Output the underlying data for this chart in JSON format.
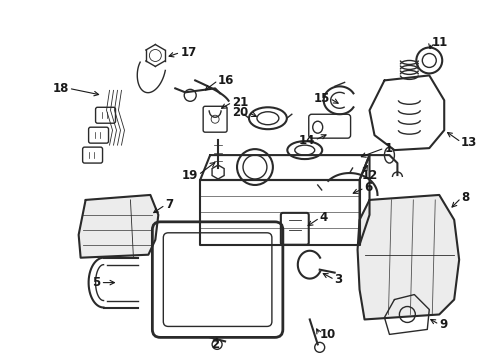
{
  "bg_color": "#ffffff",
  "fig_width": 4.89,
  "fig_height": 3.6,
  "dpi": 100,
  "line_color": "#2a2a2a",
  "text_color": "#1a1a1a",
  "font_size": 8.5
}
